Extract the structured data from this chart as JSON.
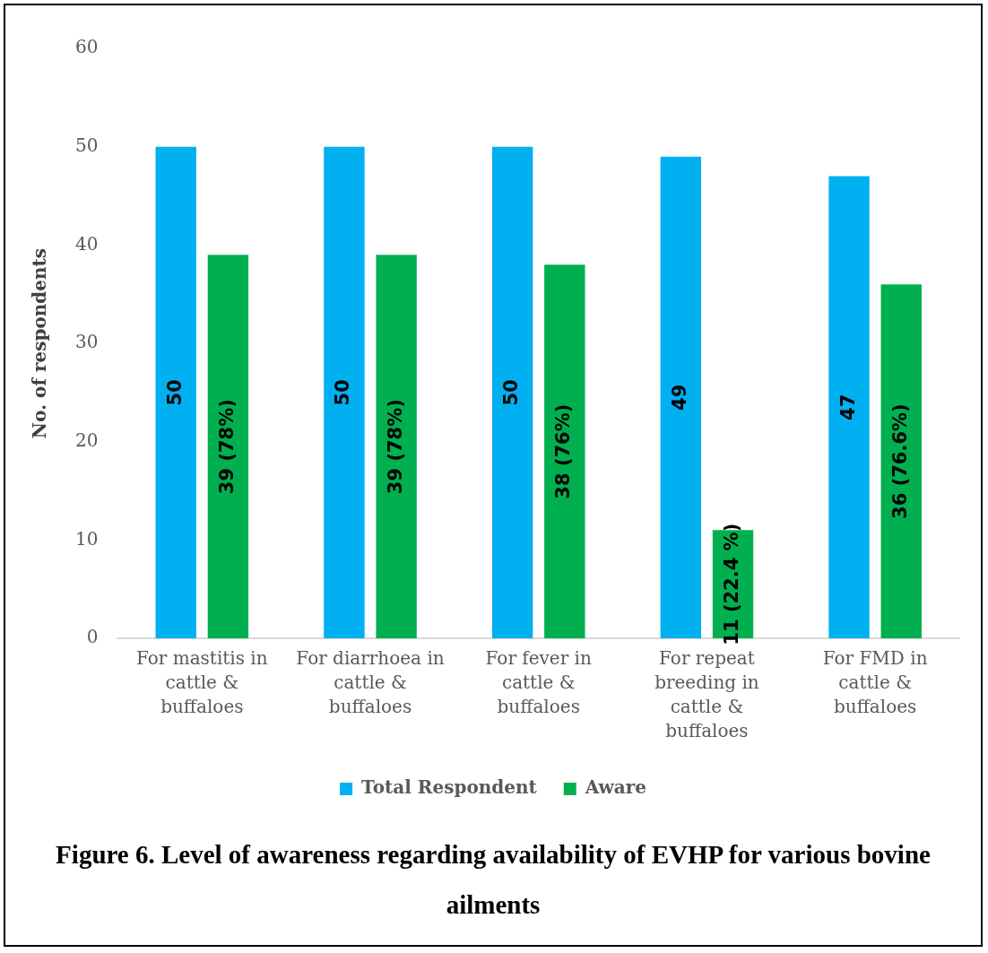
{
  "chart_data": {
    "type": "bar",
    "title": "Figure 6. Level of awareness regarding availability of EVHP for various bovine ailments",
    "ylabel": "No. of respondents",
    "categories": [
      "For mastitis in cattle & buffaloes",
      "For diarrhoea in cattle & buffaloes",
      "For fever in cattle & buffaloes",
      "For repeat breeding in cattle & buffaloes",
      "For FMD in cattle & buffaloes"
    ],
    "series": [
      {
        "name": "Total Respondent",
        "color": "#00b0f0",
        "values": [
          50,
          50,
          50,
          49,
          47
        ],
        "value_labels": [
          "50",
          "50",
          "50",
          "49",
          "47"
        ]
      },
      {
        "name": "Aware",
        "color": "#00b050",
        "values": [
          39,
          39,
          38,
          11,
          36
        ],
        "value_labels": [
          "39 (78%)",
          "39 (78%)",
          "38 (76%)",
          "11 (22.4 %)",
          "36 (76.6%)"
        ]
      }
    ],
    "ylim": [
      0,
      60
    ],
    "yticks": [
      0,
      10,
      20,
      30,
      40,
      50,
      60
    ],
    "grid": false,
    "legend": "bottom"
  }
}
